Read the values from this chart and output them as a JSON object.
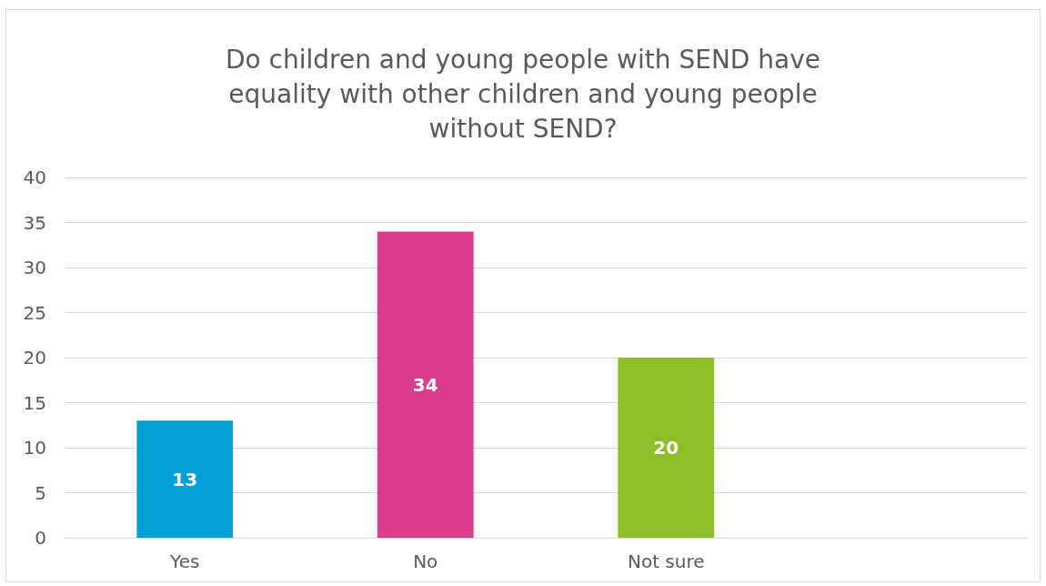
{
  "chart_data": {
    "type": "bar",
    "title": "Do children and young people with SEND have\nequality with other children and young people\nwithout SEND?",
    "categories": [
      "Yes",
      "No",
      "Not sure",
      null
    ],
    "values": [
      13,
      34,
      20,
      null
    ],
    "colors": [
      "#009fd4",
      "#dc3c8c",
      "#8cbe28",
      null
    ],
    "ylim": [
      0,
      40
    ],
    "yticks": [
      0,
      5,
      10,
      15,
      20,
      25,
      30,
      35,
      40
    ],
    "grid": "y",
    "data_labels": true
  }
}
